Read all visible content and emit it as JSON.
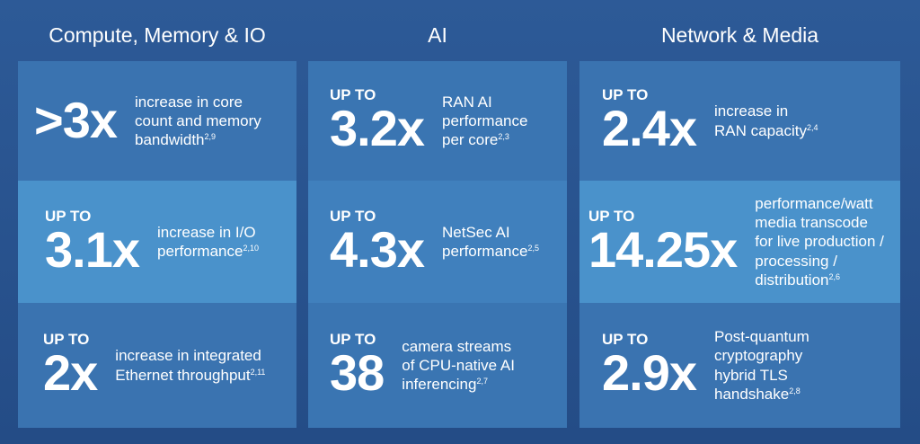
{
  "columns": [
    {
      "title": "Compute, Memory & IO",
      "cells": [
        {
          "value": ">3x",
          "desc": [
            "increase in core",
            "count and memory",
            "bandwidth"
          ],
          "sup": "2,9"
        },
        {
          "prefix": "UP TO",
          "value": "3.1x",
          "desc": [
            "increase in I/O",
            "performance"
          ],
          "sup": "2,10"
        },
        {
          "prefix": "UP TO",
          "value": "2x",
          "desc": [
            "increase in integrated",
            "Ethernet throughput"
          ],
          "sup": "2,11"
        }
      ]
    },
    {
      "title": "AI",
      "cells": [
        {
          "prefix": "UP TO",
          "value": "3.2x",
          "desc": [
            "RAN AI",
            "performance",
            "per core"
          ],
          "sup": "2,3"
        },
        {
          "prefix": "UP TO",
          "value": "4.3x",
          "desc": [
            "NetSec AI",
            "performance"
          ],
          "sup": "2,5"
        },
        {
          "prefix": "UP TO",
          "value": "38",
          "desc": [
            "camera streams",
            "of CPU-native AI",
            "inferencing"
          ],
          "sup": "2,7"
        }
      ]
    },
    {
      "title": "Network & Media",
      "cells": [
        {
          "prefix": "UP TO",
          "value": "2.4x",
          "desc": [
            "increase in",
            "RAN capacity"
          ],
          "sup": "2,4"
        },
        {
          "prefix": "UP TO",
          "value": "14.25x",
          "desc": [
            "performance/watt",
            "media transcode",
            "for live production /",
            "processing /",
            "distribution"
          ],
          "sup": "2,6"
        },
        {
          "prefix": "UP TO",
          "value": "2.9x",
          "desc": [
            "Post-quantum",
            "cryptography",
            "hybrid TLS",
            "handshake"
          ],
          "sup": "2,8"
        }
      ]
    }
  ]
}
